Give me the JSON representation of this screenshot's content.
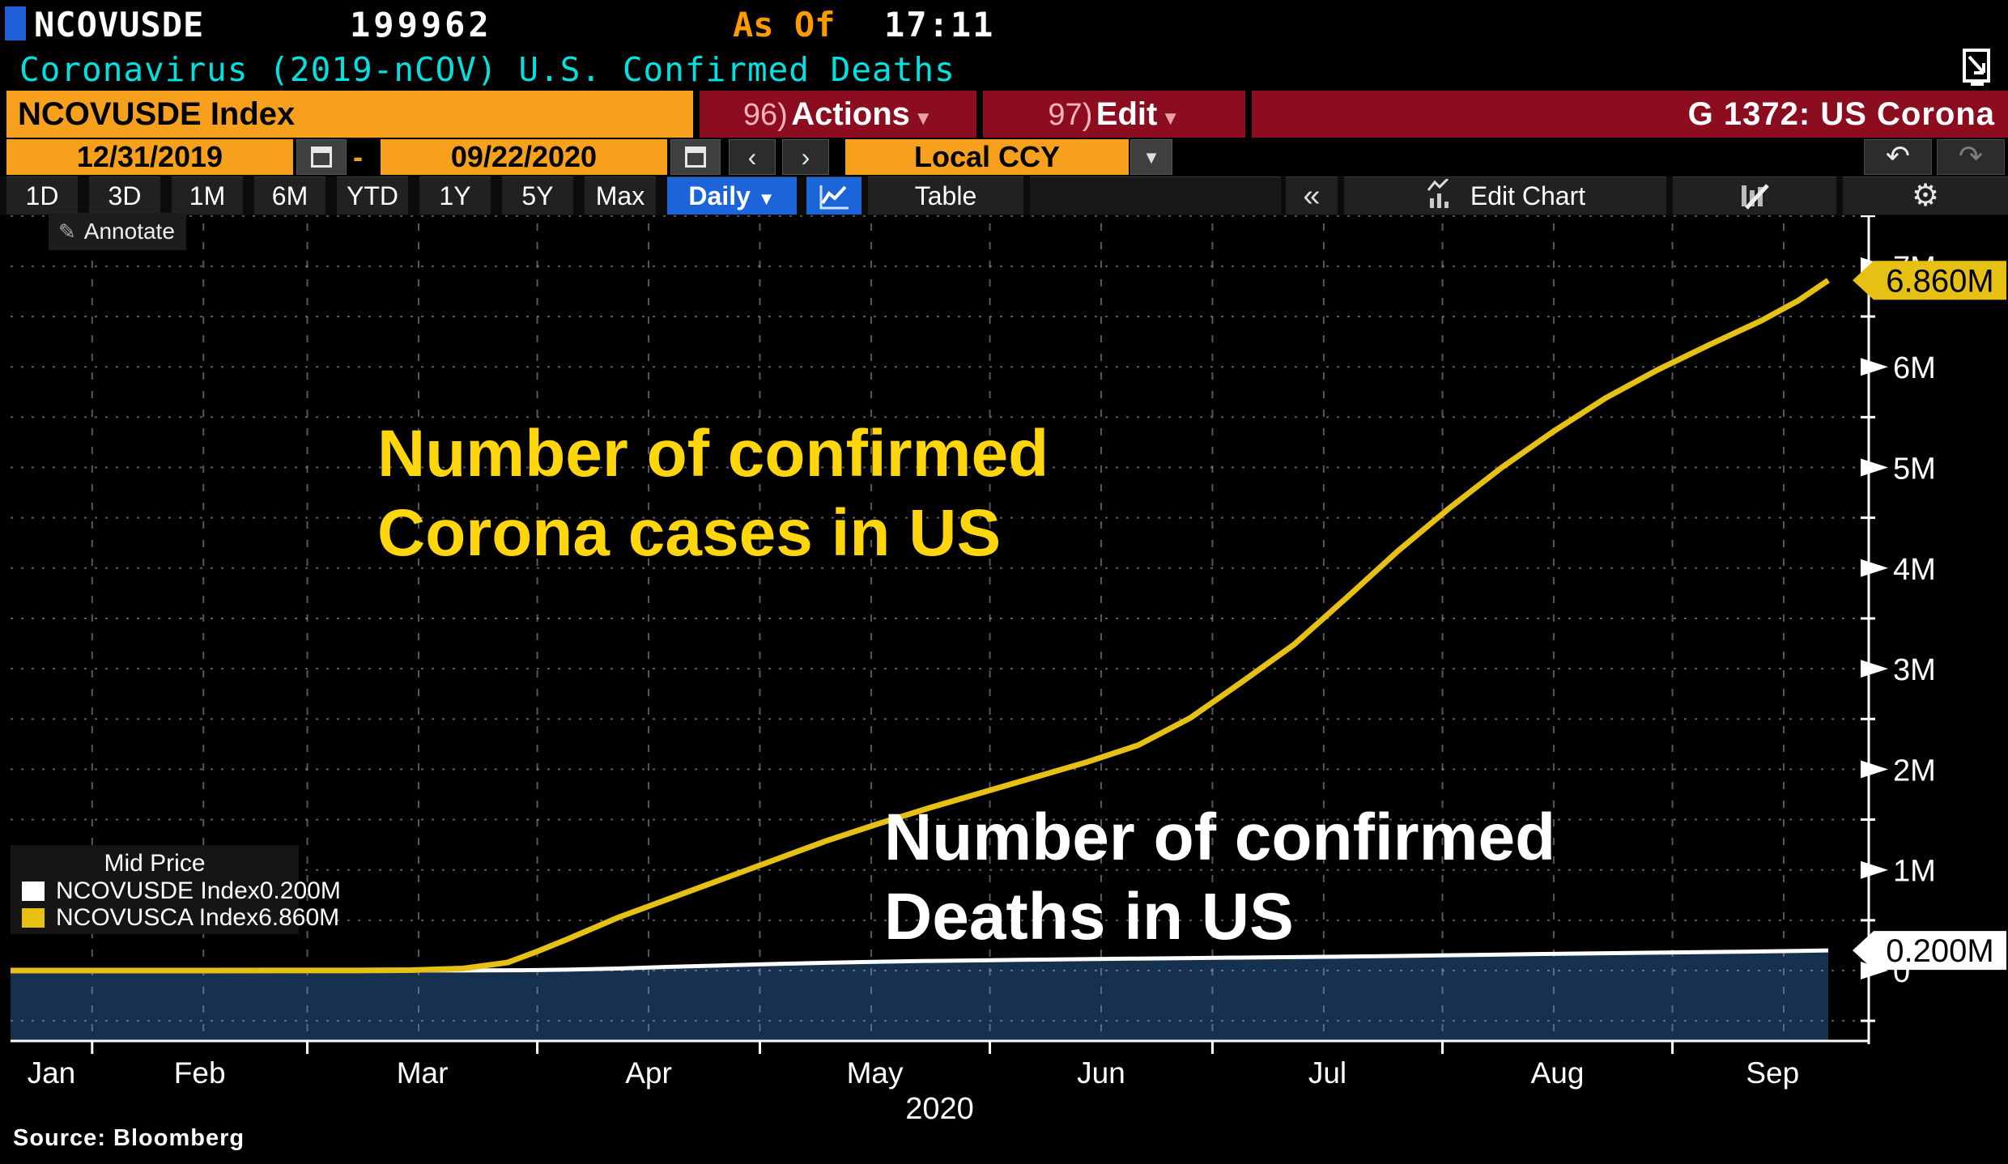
{
  "header": {
    "ticker": "NCOVUSDE",
    "value": "199962",
    "as_of_label": "As Of",
    "as_of_time": "17:11",
    "title": "Coronavirus (2019-nCOV) U.S. Confirmed Deaths"
  },
  "command_bar": {
    "security": "NCOVUSDE Index",
    "actions_number": "96)",
    "actions_label": "Actions",
    "edit_number": "97)",
    "edit_label": "Edit",
    "caret": "▼",
    "context": "G 1372: US Corona"
  },
  "range_bar": {
    "start_date": "12/31/2019",
    "separator": "-",
    "end_date": "09/22/2020",
    "prev": "‹",
    "next": "›",
    "currency": "Local CCY",
    "dropdown_caret": "▼",
    "undo": "↶",
    "redo": "↷"
  },
  "toolbar": {
    "periods": [
      "1D",
      "3D",
      "1M",
      "6M",
      "YTD",
      "1Y",
      "5Y",
      "Max"
    ],
    "frequency": "Daily",
    "frequency_caret": "▼",
    "table_label": "Table",
    "collapse": "«",
    "edit_chart": "Edit Chart",
    "gear": "⚙"
  },
  "annotate": {
    "pencil": "✎",
    "label": "Annotate"
  },
  "annotations": {
    "cases_line1": "Number of confirmed",
    "cases_line2": "Corona cases in US",
    "deaths_line1": "Number of confirmed",
    "deaths_line2": "Deaths in US"
  },
  "legend": {
    "title": "Mid Price",
    "items": [
      {
        "swatch": "#ffffff",
        "label": "NCOVUSDE Index",
        "value": "0.200M"
      },
      {
        "swatch": "#e6c114",
        "label": "NCOVUSCA Index",
        "value": "6.860M"
      }
    ]
  },
  "source": "Source:  Bloomberg",
  "chart_data": {
    "type": "line",
    "title": "Coronavirus (2019-nCOV) U.S. Confirmed Deaths",
    "x_start": "2020-01-21",
    "x_end": "2020-09-22",
    "xlabel_year": "2020",
    "month_labels": [
      "Jan",
      "Feb",
      "Mar",
      "Apr",
      "May",
      "Jun",
      "Jul",
      "Aug",
      "Sep"
    ],
    "month_label_day_centers": [
      26.5,
      46.5,
      76.5,
      107,
      137.5,
      168,
      198.5,
      229.5,
      258.5
    ],
    "month_boundary_days": [
      32,
      61,
      92,
      122,
      153,
      183,
      214,
      245
    ],
    "mid_month_days": [
      47,
      76,
      107,
      137,
      168,
      198,
      229,
      260
    ],
    "y_ticks": [
      "0",
      "1M",
      "2M",
      "3M",
      "4M",
      "5M",
      "6M",
      "7M"
    ],
    "ylim": [
      -0.7,
      7.6
    ],
    "grid": "dotted",
    "legend_position": "bottom-left",
    "series": [
      {
        "name": "NCOVUSDE Index (U.S. confirmed deaths, millions)",
        "color": "#ffffff",
        "fill_below": "#16314f",
        "last_label": "0.200M",
        "last_value": 0.2,
        "points": [
          [
            21,
            0
          ],
          [
            46,
            0
          ],
          [
            61,
            0
          ],
          [
            75,
            0.001
          ],
          [
            82,
            0.001
          ],
          [
            90,
            0.003
          ],
          [
            96,
            0.009
          ],
          [
            103,
            0.02
          ],
          [
            110,
            0.037
          ],
          [
            117,
            0.051
          ],
          [
            124,
            0.065
          ],
          [
            131,
            0.077
          ],
          [
            138,
            0.087
          ],
          [
            145,
            0.096
          ],
          [
            152,
            0.102
          ],
          [
            159,
            0.108
          ],
          [
            166,
            0.114
          ],
          [
            173,
            0.119
          ],
          [
            180,
            0.124
          ],
          [
            187,
            0.129
          ],
          [
            194,
            0.134
          ],
          [
            201,
            0.139
          ],
          [
            208,
            0.145
          ],
          [
            215,
            0.152
          ],
          [
            222,
            0.159
          ],
          [
            229,
            0.166
          ],
          [
            236,
            0.172
          ],
          [
            243,
            0.178
          ],
          [
            250,
            0.184
          ],
          [
            257,
            0.19
          ],
          [
            262,
            0.195
          ],
          [
            266,
            0.2
          ]
        ]
      },
      {
        "name": "NCOVUSCA Index (U.S. confirmed Corona cases, millions)",
        "color": "#e6c114",
        "last_label": "6.860M",
        "last_value": 6.86,
        "points": [
          [
            21,
            0
          ],
          [
            32,
            0
          ],
          [
            46,
            0
          ],
          [
            61,
            0.001
          ],
          [
            68,
            0.001
          ],
          [
            75,
            0.004
          ],
          [
            82,
            0.02
          ],
          [
            88,
            0.08
          ],
          [
            92,
            0.19
          ],
          [
            96,
            0.31
          ],
          [
            103,
            0.53
          ],
          [
            110,
            0.72
          ],
          [
            117,
            0.91
          ],
          [
            124,
            1.1
          ],
          [
            131,
            1.29
          ],
          [
            138,
            1.46
          ],
          [
            145,
            1.62
          ],
          [
            152,
            1.77
          ],
          [
            159,
            1.92
          ],
          [
            166,
            2.07
          ],
          [
            173,
            2.24
          ],
          [
            180,
            2.51
          ],
          [
            187,
            2.87
          ],
          [
            194,
            3.24
          ],
          [
            201,
            3.7
          ],
          [
            208,
            4.17
          ],
          [
            215,
            4.6
          ],
          [
            222,
            5.0
          ],
          [
            229,
            5.36
          ],
          [
            236,
            5.69
          ],
          [
            243,
            5.97
          ],
          [
            250,
            6.22
          ],
          [
            257,
            6.46
          ],
          [
            262,
            6.66
          ],
          [
            266,
            6.86
          ]
        ]
      }
    ],
    "points_format": "[day_of_year_2020, value_millions]"
  }
}
